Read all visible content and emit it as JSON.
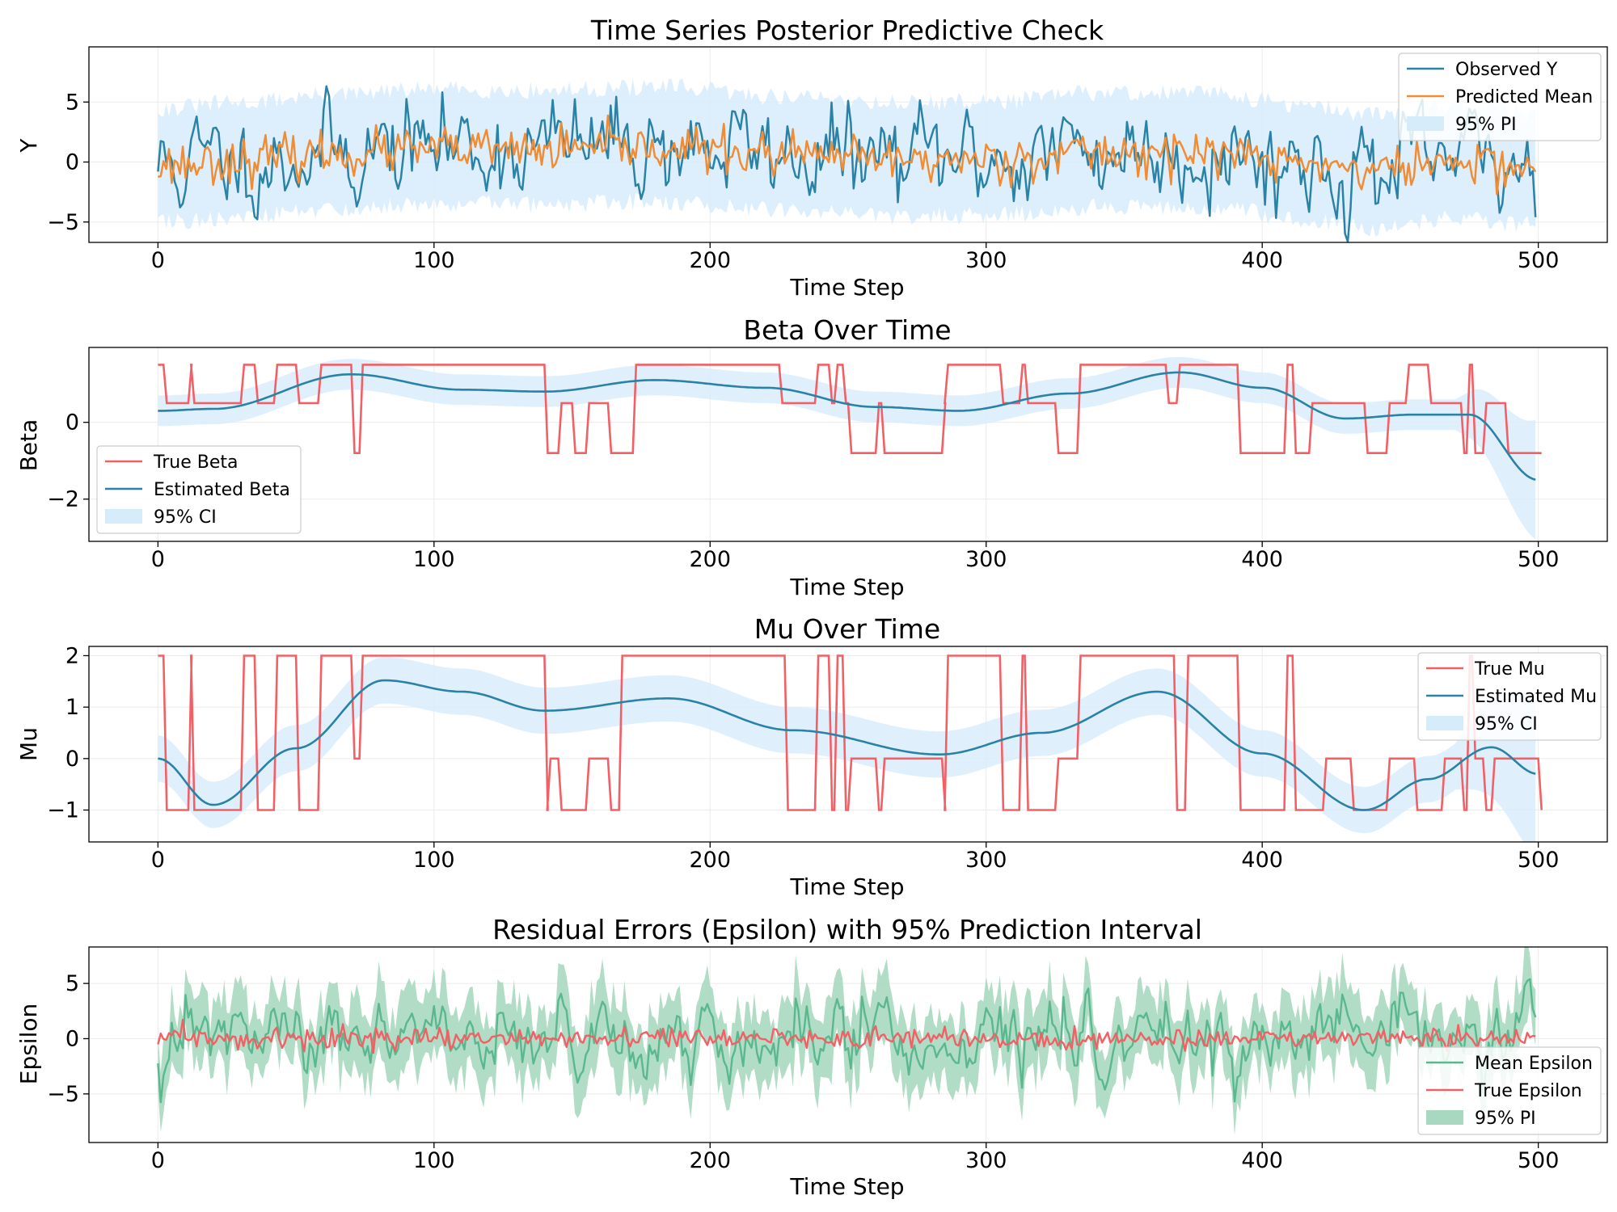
{
  "figure": {
    "background": "#ffffff"
  },
  "colors": {
    "observed": "#2a82a6",
    "predicted": "#f08c34",
    "band_blue": "#d7ecfb",
    "true_red": "#f26065",
    "estimated": "#2a82a6",
    "eps_green": "#5bb88e",
    "eps_band": "#a8d8c0"
  },
  "chart_data": [
    {
      "type": "line",
      "title": "Time Series Posterior Predictive Check",
      "xlabel": "Time Step",
      "ylabel": "Y",
      "xlim": [
        -25,
        525
      ],
      "ylim": [
        -6.7,
        9.6
      ],
      "xticks": [
        0,
        100,
        200,
        300,
        400,
        500
      ],
      "yticks": [
        -5,
        0,
        5
      ],
      "ytick_labels": [
        "−5",
        "0",
        "5"
      ],
      "legend": {
        "position": "top-right",
        "entries": [
          "Observed Y",
          "Predicted Mean",
          "95% PI"
        ]
      },
      "series": [
        {
          "name": "Observed Y",
          "kind": "line",
          "color": "#2a82a6",
          "generator": "noise",
          "n": 500,
          "scale": 1.8,
          "seed": 11,
          "base": "mu_smooth"
        },
        {
          "name": "Predicted Mean",
          "kind": "line",
          "color": "#f08c34",
          "generator": "noise",
          "n": 500,
          "scale": 1.0,
          "seed": 23,
          "base": "mu_smooth"
        },
        {
          "name": "95% PI",
          "kind": "band",
          "color": "#d7ecfb",
          "half_width_range": [
            4.0,
            5.5
          ],
          "seed": 31,
          "base": "mu_smooth"
        }
      ],
      "mean_anchors": {
        "x": [
          0,
          30,
          60,
          100,
          140,
          180,
          230,
          270,
          300,
          340,
          380,
          420,
          440,
          470,
          500
        ],
        "y": [
          -0.3,
          0.2,
          0.8,
          1.3,
          1.2,
          1.5,
          0.7,
          0.2,
          0.3,
          1.0,
          1.0,
          -0.2,
          -0.8,
          0.0,
          -0.5
        ]
      }
    },
    {
      "type": "line",
      "title": "Beta Over Time",
      "xlabel": "Time Step",
      "ylabel": "Beta",
      "xlim": [
        -25,
        525
      ],
      "ylim": [
        -3.1,
        1.95
      ],
      "xticks": [
        0,
        100,
        200,
        300,
        400,
        500
      ],
      "yticks": [
        -2,
        0
      ],
      "ytick_labels": [
        "−2",
        "0"
      ],
      "legend": {
        "position": "lower-left",
        "entries": [
          "True Beta",
          "Estimated Beta",
          "95% CI"
        ]
      },
      "levels": [
        -0.8,
        0.5,
        1.5
      ],
      "true_steps": [
        [
          0,
          1.5
        ],
        [
          2,
          0.5
        ],
        [
          11,
          1.5
        ],
        [
          12,
          0.5
        ],
        [
          30,
          1.5
        ],
        [
          35,
          0.5
        ],
        [
          42,
          1.5
        ],
        [
          50,
          0.5
        ],
        [
          58,
          1.5
        ],
        [
          70,
          -0.8
        ],
        [
          73,
          1.5
        ],
        [
          140,
          -0.8
        ],
        [
          145,
          0.5
        ],
        [
          150,
          -0.8
        ],
        [
          155,
          0.5
        ],
        [
          163,
          -0.8
        ],
        [
          172,
          1.5
        ],
        [
          225,
          0.5
        ],
        [
          238,
          1.5
        ],
        [
          243,
          0.5
        ],
        [
          245,
          1.5
        ],
        [
          248,
          0.5
        ],
        [
          250,
          -0.8
        ],
        [
          260,
          0.5
        ],
        [
          262,
          -0.8
        ],
        [
          284,
          0.5
        ],
        [
          285,
          1.5
        ],
        [
          305,
          0.5
        ],
        [
          312,
          1.5
        ],
        [
          314,
          0.5
        ],
        [
          325,
          -0.8
        ],
        [
          333,
          1.5
        ],
        [
          365,
          0.5
        ],
        [
          369,
          1.5
        ],
        [
          391,
          -0.8
        ],
        [
          408,
          1.5
        ],
        [
          411,
          -0.8
        ],
        [
          417,
          0.5
        ],
        [
          437,
          -0.8
        ],
        [
          445,
          0.5
        ],
        [
          452,
          1.5
        ],
        [
          460,
          0.5
        ],
        [
          465,
          0.5
        ],
        [
          472,
          -0.8
        ],
        [
          474,
          1.5
        ],
        [
          476,
          -0.8
        ],
        [
          480,
          0.5
        ],
        [
          488,
          -0.8
        ],
        [
          500,
          -0.8
        ]
      ],
      "estimate_anchors": {
        "x": [
          0,
          20,
          70,
          110,
          140,
          180,
          220,
          260,
          290,
          330,
          370,
          400,
          430,
          455,
          475,
          500
        ],
        "y": [
          0.3,
          0.35,
          1.25,
          0.85,
          0.8,
          1.1,
          0.9,
          0.4,
          0.3,
          0.75,
          1.3,
          0.9,
          0.1,
          0.2,
          0.2,
          -1.5
        ]
      },
      "ci_half_width": 0.4
    },
    {
      "type": "line",
      "title": "Mu Over Time",
      "xlabel": "Time Step",
      "ylabel": "Mu",
      "xlim": [
        -25,
        525
      ],
      "ylim": [
        -1.62,
        2.18
      ],
      "xticks": [
        0,
        100,
        200,
        300,
        400,
        500
      ],
      "yticks": [
        -1,
        0,
        1,
        2
      ],
      "ytick_labels": [
        "−1",
        "0",
        "1",
        "2"
      ],
      "legend": {
        "position": "top-right",
        "entries": [
          "True Mu",
          "Estimated Mu",
          "95% CI"
        ]
      },
      "true_steps": [
        [
          0,
          2
        ],
        [
          2,
          -1
        ],
        [
          11,
          2
        ],
        [
          12,
          -1
        ],
        [
          30,
          2
        ],
        [
          35,
          -1
        ],
        [
          42,
          2
        ],
        [
          50,
          -1
        ],
        [
          58,
          2
        ],
        [
          70,
          0
        ],
        [
          73,
          2
        ],
        [
          140,
          -1
        ],
        [
          141,
          0
        ],
        [
          145,
          -1
        ],
        [
          155,
          0
        ],
        [
          163,
          -1
        ],
        [
          167,
          2
        ],
        [
          227,
          -1
        ],
        [
          238,
          2
        ],
        [
          243,
          -1
        ],
        [
          245,
          2
        ],
        [
          248,
          -1
        ],
        [
          250,
          0
        ],
        [
          260,
          -1
        ],
        [
          262,
          0
        ],
        [
          284,
          -1
        ],
        [
          285,
          2
        ],
        [
          305,
          -1
        ],
        [
          312,
          2
        ],
        [
          314,
          -1
        ],
        [
          325,
          0
        ],
        [
          333,
          2
        ],
        [
          368,
          -1
        ],
        [
          372,
          2
        ],
        [
          391,
          -1
        ],
        [
          408,
          2
        ],
        [
          411,
          -1
        ],
        [
          422,
          0
        ],
        [
          432,
          -1
        ],
        [
          445,
          0
        ],
        [
          455,
          -1
        ],
        [
          465,
          0
        ],
        [
          472,
          -1
        ],
        [
          474,
          2
        ],
        [
          476,
          0
        ],
        [
          480,
          -1
        ],
        [
          483,
          0
        ],
        [
          500,
          -1
        ]
      ],
      "estimate_anchors": {
        "x": [
          0,
          20,
          50,
          82,
          110,
          140,
          185,
          230,
          283,
          320,
          362,
          400,
          437,
          460,
          483,
          500
        ],
        "y": [
          0.0,
          -0.9,
          0.2,
          1.52,
          1.3,
          0.93,
          1.17,
          0.55,
          0.08,
          0.5,
          1.3,
          0.1,
          -1.0,
          -0.4,
          0.22,
          -0.3
        ]
      },
      "ci_half_width": 0.45
    },
    {
      "type": "line",
      "title": "Residual Errors (Epsilon) with 95% Prediction Interval",
      "xlabel": "Time Step",
      "ylabel": "Epsilon",
      "xlim": [
        -25,
        525
      ],
      "ylim": [
        -9.4,
        8.3
      ],
      "xticks": [
        0,
        100,
        200,
        300,
        400,
        500
      ],
      "yticks": [
        -5,
        0,
        5
      ],
      "ytick_labels": [
        "−5",
        "0",
        "5"
      ],
      "legend": {
        "position": "lower-right",
        "entries": [
          "Mean Epsilon",
          "True Epsilon",
          "95% PI"
        ]
      },
      "series": [
        {
          "name": "Mean Epsilon",
          "kind": "line",
          "color": "#5bb88e",
          "generator": "noise",
          "n": 500,
          "scale": 1.4,
          "seed": 47
        },
        {
          "name": "True Epsilon",
          "kind": "line",
          "color": "#f26065",
          "generator": "noise",
          "n": 500,
          "scale": 0.45,
          "seed": 59
        },
        {
          "name": "95% PI",
          "kind": "band",
          "color": "#a8d8c0",
          "half_width_range": [
            2.0,
            4.0
          ],
          "seed": 67
        }
      ]
    }
  ]
}
